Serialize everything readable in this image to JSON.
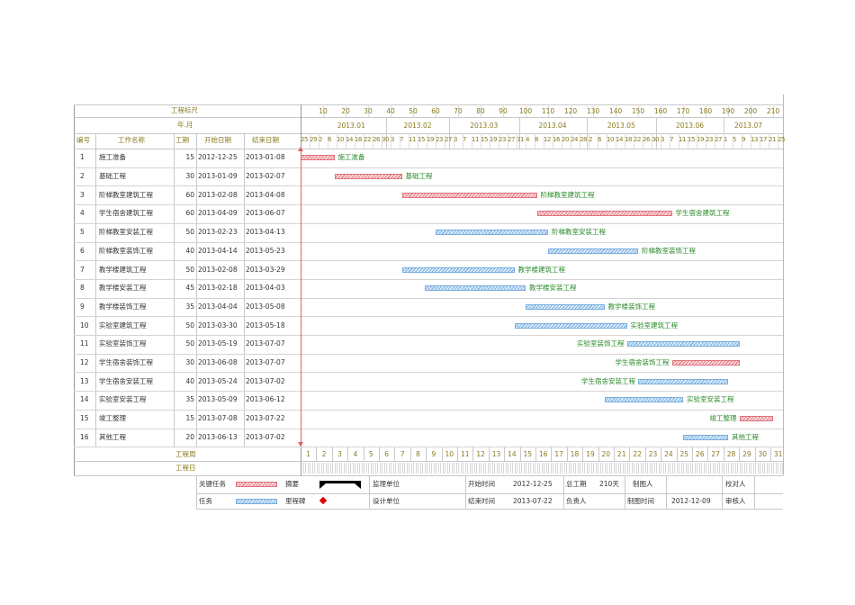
{
  "header": {
    "scale_title": "工程标尺",
    "month_title": "年.月",
    "scale_numbers": [
      "10",
      "20",
      "30",
      "40",
      "50",
      "60",
      "70",
      "80",
      "90",
      "100",
      "110",
      "120",
      "130",
      "140",
      "150",
      "160",
      "170",
      "180",
      "190",
      "200",
      "210"
    ],
    "months": [
      "2013.01",
      "2013.02",
      "2013.03",
      "2013.04",
      "2013.05",
      "2013.06",
      "2013.07"
    ],
    "days": [
      "25",
      "29",
      "2",
      "6",
      "10",
      "14",
      "18",
      "22",
      "26",
      "30",
      "3",
      "7",
      "11",
      "15",
      "19",
      "23",
      "27",
      "3",
      "7",
      "11",
      "15",
      "19",
      "23",
      "27",
      "31",
      "4",
      "8",
      "12",
      "16",
      "20",
      "24",
      "28",
      "2",
      "6",
      "10",
      "14",
      "18",
      "22",
      "26",
      "30",
      "3",
      "7",
      "11",
      "15",
      "19",
      "23",
      "27",
      "1",
      "5",
      "9",
      "13",
      "17",
      "21",
      "25"
    ]
  },
  "columns": {
    "no": "编号",
    "name": "工作名称",
    "duration": "工期",
    "start": "开始日期",
    "end": "结束日期"
  },
  "tasks": [
    {
      "no": "1",
      "name": "施工准备",
      "duration": "15",
      "start": "2012-12-25",
      "end": "2013-01-08",
      "critical": true,
      "s": 0,
      "d": 15,
      "label_side": "right"
    },
    {
      "no": "2",
      "name": "基础工程",
      "duration": "30",
      "start": "2013-01-09",
      "end": "2013-02-07",
      "critical": true,
      "s": 15,
      "d": 30,
      "label_side": "right"
    },
    {
      "no": "3",
      "name": "阶梯教室建筑工程",
      "duration": "60",
      "start": "2013-02-08",
      "end": "2013-04-08",
      "critical": true,
      "s": 45,
      "d": 60,
      "label_side": "right"
    },
    {
      "no": "4",
      "name": "学生宿舍建筑工程",
      "duration": "60",
      "start": "2013-04-09",
      "end": "2013-06-07",
      "critical": true,
      "s": 105,
      "d": 60,
      "label_side": "right"
    },
    {
      "no": "5",
      "name": "阶梯教室安装工程",
      "duration": "50",
      "start": "2013-02-23",
      "end": "2013-04-13",
      "critical": false,
      "s": 60,
      "d": 50,
      "label_side": "right"
    },
    {
      "no": "6",
      "name": "阶梯教室装饰工程",
      "duration": "40",
      "start": "2013-04-14",
      "end": "2013-05-23",
      "critical": false,
      "s": 110,
      "d": 40,
      "label_side": "right"
    },
    {
      "no": "7",
      "name": "教学楼建筑工程",
      "duration": "50",
      "start": "2013-02-08",
      "end": "2013-03-29",
      "critical": false,
      "s": 45,
      "d": 50,
      "label_side": "right"
    },
    {
      "no": "8",
      "name": "教学楼安装工程",
      "duration": "45",
      "start": "2013-02-18",
      "end": "2013-04-03",
      "critical": false,
      "s": 55,
      "d": 45,
      "label_side": "right"
    },
    {
      "no": "9",
      "name": "教学楼装饰工程",
      "duration": "35",
      "start": "2013-04-04",
      "end": "2013-05-08",
      "critical": false,
      "s": 100,
      "d": 35,
      "label_side": "right"
    },
    {
      "no": "10",
      "name": "实验室建筑工程",
      "duration": "50",
      "start": "2013-03-30",
      "end": "2013-05-18",
      "critical": false,
      "s": 95,
      "d": 50,
      "label_side": "right"
    },
    {
      "no": "11",
      "name": "实验室装饰工程",
      "duration": "50",
      "start": "2013-05-19",
      "end": "2013-07-07",
      "critical": false,
      "s": 145,
      "d": 50,
      "label_side": "left"
    },
    {
      "no": "12",
      "name": "学生宿舍装饰工程",
      "duration": "30",
      "start": "2013-06-08",
      "end": "2013-07-07",
      "critical": true,
      "s": 165,
      "d": 30,
      "label_side": "left"
    },
    {
      "no": "13",
      "name": "学生宿舍安装工程",
      "duration": "40",
      "start": "2013-05-24",
      "end": "2013-07-02",
      "critical": false,
      "s": 150,
      "d": 40,
      "label_side": "left"
    },
    {
      "no": "14",
      "name": "实验室安装工程",
      "duration": "35",
      "start": "2013-05-09",
      "end": "2013-06-12",
      "critical": false,
      "s": 135,
      "d": 35,
      "label_side": "right"
    },
    {
      "no": "15",
      "name": "竣工整理",
      "duration": "15",
      "start": "2013-07-08",
      "end": "2013-07-22",
      "critical": true,
      "s": 195,
      "d": 15,
      "label_side": "left"
    },
    {
      "no": "16",
      "name": "其他工程",
      "duration": "20",
      "start": "2013-06-13",
      "end": "2013-07-02",
      "critical": false,
      "s": 170,
      "d": 20,
      "label_side": "right"
    }
  ],
  "footer": {
    "week_title": "工程周",
    "day_title": "工程日",
    "weeks": [
      "1",
      "2",
      "3",
      "4",
      "5",
      "6",
      "7",
      "8",
      "9",
      "10",
      "11",
      "12",
      "13",
      "14",
      "15",
      "16",
      "17",
      "18",
      "19",
      "20",
      "21",
      "22",
      "23",
      "24",
      "25",
      "26",
      "27",
      "28",
      "29",
      "30",
      "31"
    ]
  },
  "legend": {
    "critical": "关键任务",
    "summary": "摘要",
    "task": "任务",
    "milestone": "里程碑",
    "supervisor": "监理单位",
    "designer": "设计单位",
    "start_label": "开始时间",
    "start_value": "2012-12-25",
    "end_label": "结束时间",
    "end_value": "2013-07-22",
    "total_label": "总工期",
    "total_value": "210天",
    "owner_label": "负责人",
    "drawer_label": "制图人",
    "draw_time_label": "制图时间",
    "draw_time_value": "2012-12-09",
    "checker_label": "校对人",
    "reviewer_label": "审核人"
  },
  "colors": {
    "critical": "#e67d86",
    "normal": "#7fb2e2",
    "milestone": "#e00000",
    "header_text": "#8a7a1e",
    "bar_label": "#2a8a2a"
  }
}
